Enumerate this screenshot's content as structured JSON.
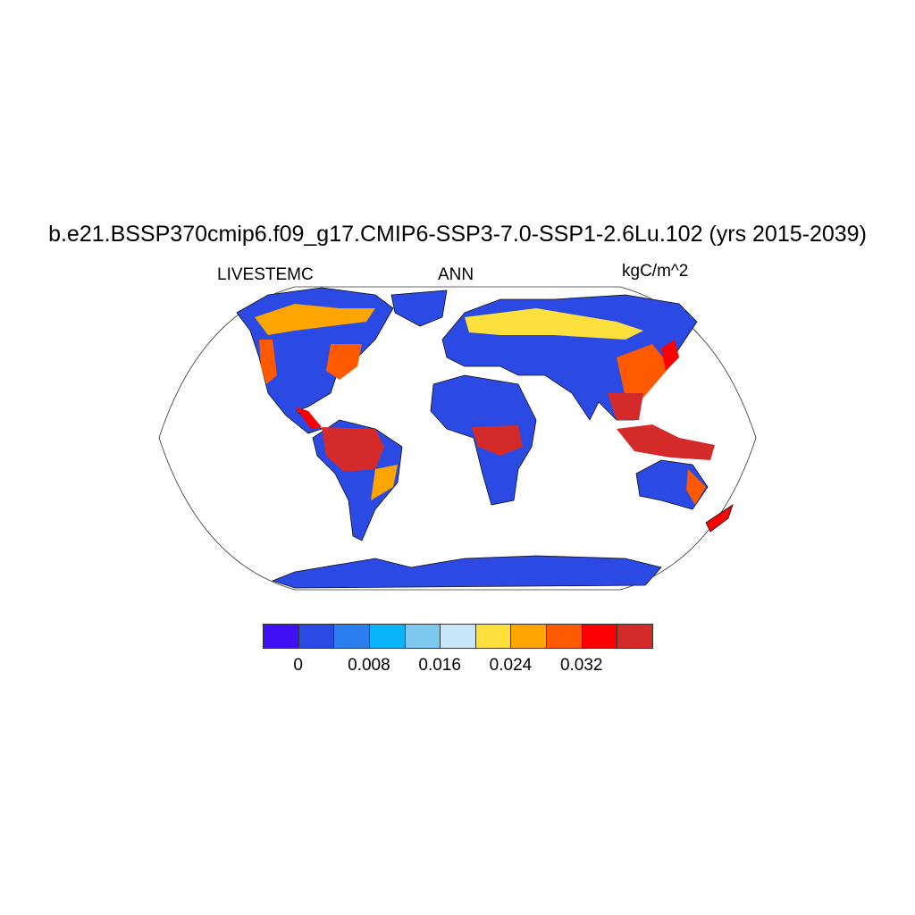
{
  "title": "b.e21.BSSP370cmip6.f09_g17.CMIP6-SSP3-7.0-SSP1-2.6Lu.102 (yrs 2015-2039)",
  "left_label": "LIVESTEMC",
  "center_label": "ANN",
  "right_label": "kgC/m^2",
  "chart_data": {
    "type": "heatmap",
    "projection": "Robinson global map with coastlines",
    "colorbar": {
      "orientation": "horizontal",
      "levels": [
        0,
        0.004,
        0.008,
        0.012,
        0.016,
        0.02,
        0.024,
        0.028,
        0.032,
        0.036
      ],
      "tick_labels": [
        "0",
        "0.008",
        "0.016",
        "0.024",
        "0.032"
      ],
      "colors": [
        "#4010f5",
        "#2b4ae3",
        "#2a7ef0",
        "#0ab4fa",
        "#7cc8ee",
        "#c8e6f8",
        "#fde03c",
        "#ffa500",
        "#ff5a00",
        "#fa0000",
        "#d42a2a"
      ]
    },
    "high_value_regions": [
      "Amazon",
      "Congo basin",
      "Southeast Asia",
      "Maritime continent",
      "eastern North America",
      "boreal belts"
    ]
  }
}
